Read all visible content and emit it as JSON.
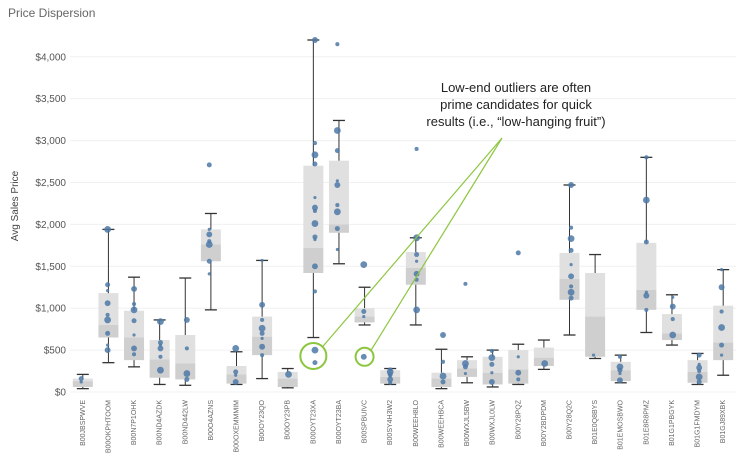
{
  "title": "Price Dispersion",
  "colors": {
    "box": "#e0e0e0",
    "box_lower": "#cfcfcf",
    "point": "#4e79a7",
    "whisker": "#333333",
    "annotation": "#8cc63f",
    "grid": "#f0f0f0"
  },
  "chart_data": {
    "type": "box",
    "title": "Price Dispersion",
    "ylabel": "Avg Sales Price",
    "yticks": [
      "$0",
      "$500",
      "$1,000",
      "$1,500",
      "$2,000",
      "$2,500",
      "$3,000",
      "$3,500",
      "$4,000"
    ],
    "ylim": [
      0,
      4200
    ],
    "grid": false,
    "categories": [
      {
        "label": "B00JBSPWVE",
        "whisker": [
          40,
          210
        ],
        "box": [
          60,
          160
        ],
        "median": 130,
        "points": [
          120,
          160
        ]
      },
      {
        "label": "B00OKPHTOOM",
        "whisker": [
          350,
          1940
        ],
        "box": [
          650,
          1180
        ],
        "median": 800,
        "points": [
          500,
          560,
          700,
          860,
          920,
          1060,
          1210,
          1280,
          1940
        ]
      },
      {
        "label": "B00N7P1OHK",
        "whisker": [
          300,
          1370
        ],
        "box": [
          380,
          970
        ],
        "median": 650,
        "points": [
          450,
          520,
          680,
          850,
          980,
          1050,
          1230
        ]
      },
      {
        "label": "B00ND4AZDK",
        "whisker": [
          90,
          860
        ],
        "box": [
          170,
          620
        ],
        "median": 390,
        "points": [
          260,
          420,
          520,
          560,
          590,
          840
        ]
      },
      {
        "label": "B00ND442LW",
        "whisker": [
          80,
          1360
        ],
        "box": [
          150,
          680
        ],
        "median": 340,
        "points": [
          150,
          220,
          520,
          860
        ]
      },
      {
        "label": "B00O4AZNS",
        "whisker": [
          980,
          2130
        ],
        "box": [
          1560,
          1940
        ],
        "median": 1760,
        "points": [
          1410,
          1560,
          1760,
          1800,
          1880,
          1940,
          2710
        ]
      },
      {
        "label": "B00OXEMMMIM",
        "whisker": [
          90,
          480
        ],
        "box": [
          100,
          310
        ],
        "median": 210,
        "points": [
          120,
          200,
          240,
          520
        ]
      },
      {
        "label": "B00OY23QO",
        "whisker": [
          160,
          1570
        ],
        "box": [
          440,
          900
        ],
        "median": 660,
        "points": [
          440,
          540,
          640,
          700,
          760,
          860,
          1040,
          1570
        ]
      },
      {
        "label": "B00OY23PB",
        "whisker": [
          50,
          280
        ],
        "box": [
          60,
          240
        ],
        "median": 160,
        "points": [
          210
        ]
      },
      {
        "label": "B00OYT23XA",
        "whisker": [
          650,
          4200
        ],
        "box": [
          1420,
          2700
        ],
        "median": 1720,
        "points": [
          350,
          500,
          1200,
          1500,
          1820,
          1850,
          2010,
          2160,
          2200,
          2320,
          2720,
          2830,
          2970,
          4200
        ]
      },
      {
        "label": "B00OYT23BA",
        "whisker": [
          1530,
          3240
        ],
        "box": [
          1900,
          2760
        ],
        "median": 2000,
        "points": [
          1700,
          1950,
          2150,
          2230,
          2470,
          2520,
          2880,
          3120,
          4150
        ]
      },
      {
        "label": "B00SPBUIVC",
        "whisker": [
          800,
          1250
        ],
        "box": [
          830,
          1000
        ],
        "median": 900,
        "points": [
          420,
          900,
          960,
          1520
        ]
      },
      {
        "label": "B00SY4H3W2",
        "whisker": [
          90,
          280
        ],
        "box": [
          100,
          260
        ],
        "median": 180,
        "points": [
          110,
          150,
          190,
          210,
          240,
          270
        ]
      },
      {
        "label": "B00WEEH8LO",
        "whisker": [
          800,
          1840
        ],
        "box": [
          1280,
          1670
        ],
        "median": 1480,
        "points": [
          980,
          1340,
          1410,
          1560,
          1640,
          1840,
          2900
        ]
      },
      {
        "label": "B00WEEHBCA",
        "whisker": [
          40,
          510
        ],
        "box": [
          60,
          230
        ],
        "median": 160,
        "points": [
          120,
          190,
          360,
          680
        ]
      },
      {
        "label": "B00WXJL5BW",
        "whisker": [
          110,
          420
        ],
        "box": [
          180,
          380
        ],
        "median": 280,
        "points": [
          220,
          300,
          340,
          1290
        ]
      },
      {
        "label": "B00WXJL0LW",
        "whisker": [
          60,
          500
        ],
        "box": [
          90,
          420
        ],
        "median": 230,
        "points": [
          120,
          230,
          330,
          410,
          490
        ]
      },
      {
        "label": "B00Y28PQZ",
        "whisker": [
          90,
          570
        ],
        "box": [
          100,
          500
        ],
        "median": 270,
        "points": [
          150,
          230,
          420,
          1660
        ]
      },
      {
        "label": "B00Y2BDPDM",
        "whisker": [
          270,
          620
        ],
        "box": [
          310,
          530
        ],
        "median": 410,
        "points": [
          340
        ]
      },
      {
        "label": "B00Y28Q2C",
        "whisker": [
          680,
          2470
        ],
        "box": [
          1100,
          1660
        ],
        "median": 1350,
        "points": [
          1120,
          1190,
          1260,
          1380,
          1520,
          1690,
          1830,
          1960,
          2470
        ]
      },
      {
        "label": "B01E0Q8BYS",
        "whisker": [
          400,
          1640
        ],
        "box": [
          420,
          1420
        ],
        "median": 900,
        "points": [
          440
        ]
      },
      {
        "label": "B01EMOSBWO",
        "whisker": [
          110,
          440
        ],
        "box": [
          130,
          360
        ],
        "median": 260,
        "points": [
          140,
          220,
          260,
          300,
          420
        ]
      },
      {
        "label": "B01E8R8PMZ",
        "whisker": [
          710,
          2800
        ],
        "box": [
          980,
          1780
        ],
        "median": 1220,
        "points": [
          980,
          1150,
          1190,
          1790,
          2290,
          2800
        ]
      },
      {
        "label": "B01G1PBGYK",
        "whisker": [
          560,
          1160
        ],
        "box": [
          620,
          930
        ],
        "median": 700,
        "points": [
          680,
          870,
          1020,
          1130
        ]
      },
      {
        "label": "B01G1FMDYM",
        "whisker": [
          90,
          460
        ],
        "box": [
          110,
          380
        ],
        "median": 240,
        "points": [
          120,
          180,
          250,
          290,
          330,
          440
        ]
      },
      {
        "label": "B01GJ89XBK",
        "whisker": [
          200,
          1460
        ],
        "box": [
          380,
          1030
        ],
        "median": 590,
        "points": [
          440,
          560,
          770,
          960,
          1250,
          1460
        ]
      }
    ],
    "annotation": {
      "lines": [
        "Low-end outliers are often",
        "prime candidates for quick",
        "results (i.e., “low-hanging fruit”)"
      ],
      "highlighted_categories": [
        "B00OYT23XA",
        "B00SPBUIVC"
      ]
    }
  }
}
